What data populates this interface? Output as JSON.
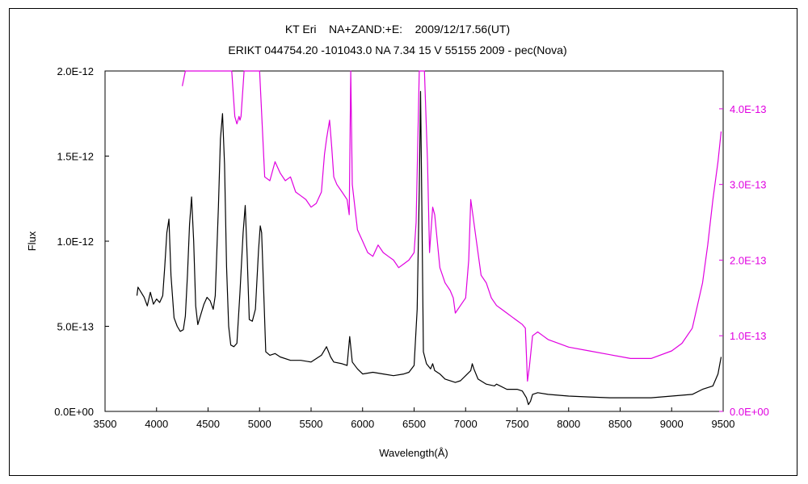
{
  "chart_data": {
    "type": "line",
    "title": "KT Eri    NA+ZAND:+E:    2009/12/17.56(UT)",
    "subtitle": "ERIKT 044754.20 -101043.0 NA 7.34 15 V 55155 2009 - pec(Nova)",
    "xlabel": "Wavelength(Å)",
    "ylabel": "Flux",
    "xlim": [
      3500,
      9500
    ],
    "ylim_left": [
      0,
      2e-12
    ],
    "ylim_right": [
      0,
      4.5e-13
    ],
    "x_ticks": [
      "3500",
      "4000",
      "4500",
      "5000",
      "5500",
      "6000",
      "6500",
      "7000",
      "7500",
      "8000",
      "8500",
      "9000",
      "9500"
    ],
    "y_ticks_left": [
      "0.0E+00",
      "5.0E-13",
      "1.0E-12",
      "1.5E-12",
      "2.0E-12"
    ],
    "y_ticks_right": [
      "0.0E+00",
      "1.0E-13",
      "2.0E-13",
      "3.0E-13",
      "4.0E-13"
    ],
    "grid": false,
    "colors": {
      "left_series": "#000000",
      "right_series": "#e000e0",
      "right_axis": "#e000e0"
    },
    "series": [
      {
        "axis": "left",
        "x": [
          3810,
          3820,
          3850,
          3880,
          3910,
          3940,
          3970,
          4000,
          4030,
          4060,
          4080,
          4100,
          4120,
          4140,
          4170,
          4200,
          4230,
          4260,
          4280,
          4300,
          4320,
          4340,
          4360,
          4380,
          4400,
          4430,
          4460,
          4490,
          4520,
          4550,
          4570,
          4600,
          4620,
          4640,
          4660,
          4680,
          4700,
          4720,
          4750,
          4780,
          4810,
          4840,
          4861,
          4880,
          4900,
          4930,
          4960,
          4990,
          5007,
          5020,
          5040,
          5060,
          5100,
          5150,
          5200,
          5300,
          5400,
          5500,
          5600,
          5650,
          5690,
          5720,
          5800,
          5850,
          5875,
          5900,
          5950,
          6000,
          6100,
          6200,
          6300,
          6400,
          6450,
          6500,
          6530,
          6550,
          6563,
          6575,
          6590,
          6620,
          6660,
          6680,
          6700,
          6750,
          6800,
          6900,
          6950,
          7000,
          7050,
          7065,
          7080,
          7120,
          7200,
          7280,
          7300,
          7400,
          7500,
          7550,
          7590,
          7610,
          7630,
          7650,
          7700,
          7800,
          8000,
          8200,
          8400,
          8600,
          8800,
          9000,
          9200,
          9300,
          9400,
          9450,
          9480
        ],
        "y": [
          6.8e-13,
          7.3e-13,
          7e-13,
          6.7e-13,
          6.2e-13,
          7e-13,
          6.3e-13,
          6.6e-13,
          6.4e-13,
          6.8e-13,
          8.5e-13,
          1.05e-12,
          1.13e-12,
          8e-13,
          5.5e-13,
          5e-13,
          4.7e-13,
          4.8e-13,
          5.6e-13,
          8e-13,
          1.1e-12,
          1.26e-12,
          1e-12,
          6.2e-13,
          5.1e-13,
          5.7e-13,
          6.3e-13,
          6.7e-13,
          6.5e-13,
          6e-13,
          6.8e-13,
          1.2e-12,
          1.6e-12,
          1.75e-12,
          1.45e-12,
          8.5e-13,
          5e-13,
          3.9e-13,
          3.8e-13,
          4e-13,
          7e-13,
          1.05e-12,
          1.21e-12,
          9e-13,
          5.4e-13,
          5.3e-13,
          6e-13,
          9.5e-13,
          1.09e-12,
          1.05e-12,
          7e-13,
          3.5e-13,
          3.3e-13,
          3.4e-13,
          3.2e-13,
          3e-13,
          3e-13,
          2.9e-13,
          3.3e-13,
          3.8e-13,
          3.2e-13,
          2.9e-13,
          2.8e-13,
          2.7e-13,
          4.4e-13,
          2.9e-13,
          2.5e-13,
          2.2e-13,
          2.3e-13,
          2.2e-13,
          2.1e-13,
          2.2e-13,
          2.3e-13,
          2.7e-13,
          6e-13,
          1.3e-12,
          1.88e-12,
          1.2e-12,
          3.5e-13,
          2.8e-13,
          2.5e-13,
          2.8e-13,
          2.4e-13,
          2.2e-13,
          1.9e-13,
          1.7e-13,
          1.8e-13,
          2.1e-13,
          2.4e-13,
          2.8e-13,
          2.5e-13,
          1.9e-13,
          1.6e-13,
          1.5e-13,
          1.6e-13,
          1.3e-13,
          1.3e-13,
          1.2e-13,
          8e-14,
          4e-14,
          6e-14,
          1e-13,
          1.1e-13,
          1e-13,
          9e-14,
          8.5e-14,
          8e-14,
          8e-14,
          8e-14,
          9e-14,
          1e-13,
          1.3e-13,
          1.5e-13,
          2.2e-13,
          3.2e-13
        ]
      },
      {
        "axis": "right",
        "x": [
          4250,
          4280,
          4600,
          4640,
          4680,
          4700,
          4730,
          4760,
          4780,
          4800,
          4810,
          4820,
          4850,
          4900,
          5000,
          5050,
          5100,
          5150,
          5200,
          5250,
          5300,
          5350,
          5400,
          5450,
          5500,
          5550,
          5600,
          5630,
          5650,
          5680,
          5700,
          5720,
          5750,
          5800,
          5850,
          5870,
          5885,
          5900,
          5950,
          6000,
          6050,
          6100,
          6150,
          6200,
          6250,
          6300,
          6350,
          6400,
          6450,
          6500,
          6520,
          6550,
          6600,
          6630,
          6650,
          6680,
          6700,
          6750,
          6800,
          6850,
          6880,
          6900,
          6950,
          7000,
          7030,
          7050,
          7070,
          7100,
          7150,
          7200,
          7250,
          7300,
          7350,
          7400,
          7450,
          7500,
          7550,
          7580,
          7600,
          7620,
          7650,
          7700,
          7750,
          7800,
          7900,
          8000,
          8200,
          8400,
          8600,
          8800,
          9000,
          9100,
          9200,
          9300,
          9350,
          9400,
          9450,
          9480
        ],
        "y": [
          4.3e-13,
          4.5e-13,
          4.6e-13,
          4.6e-13,
          4.6e-13,
          4.6e-13,
          4.5e-13,
          3.9e-13,
          3.8e-13,
          3.9e-13,
          3.85e-13,
          3.9e-13,
          4.5e-13,
          4.6e-13,
          4.6e-13,
          3.1e-13,
          3.05e-13,
          3.3e-13,
          3.15e-13,
          3.05e-13,
          3.1e-13,
          2.9e-13,
          2.85e-13,
          2.8e-13,
          2.7e-13,
          2.75e-13,
          2.9e-13,
          3.4e-13,
          3.6e-13,
          3.85e-13,
          3.5e-13,
          3.1e-13,
          3e-13,
          2.9e-13,
          2.8e-13,
          2.6e-13,
          4.5e-13,
          3e-13,
          2.4e-13,
          2.25e-13,
          2.1e-13,
          2.05e-13,
          2.2e-13,
          2.1e-13,
          2.05e-13,
          2e-13,
          1.9e-13,
          1.95e-13,
          2e-13,
          2.1e-13,
          2.5e-13,
          4.6e-13,
          4.6e-13,
          3.3e-13,
          2.1e-13,
          2.7e-13,
          2.6e-13,
          1.9e-13,
          1.7e-13,
          1.6e-13,
          1.5e-13,
          1.3e-13,
          1.4e-13,
          1.5e-13,
          2e-13,
          2.8e-13,
          2.6e-13,
          2.3e-13,
          1.8e-13,
          1.7e-13,
          1.5e-13,
          1.4e-13,
          1.35e-13,
          1.3e-13,
          1.25e-13,
          1.2e-13,
          1.15e-13,
          1.1e-13,
          4e-14,
          6e-14,
          1e-13,
          1.05e-13,
          1e-13,
          9.5e-14,
          9e-14,
          8.5e-14,
          8e-14,
          7.5e-14,
          7e-14,
          7e-14,
          8e-14,
          9e-14,
          1.1e-13,
          1.7e-13,
          2.2e-13,
          2.8e-13,
          3.3e-13,
          3.7e-13
        ]
      }
    ]
  }
}
